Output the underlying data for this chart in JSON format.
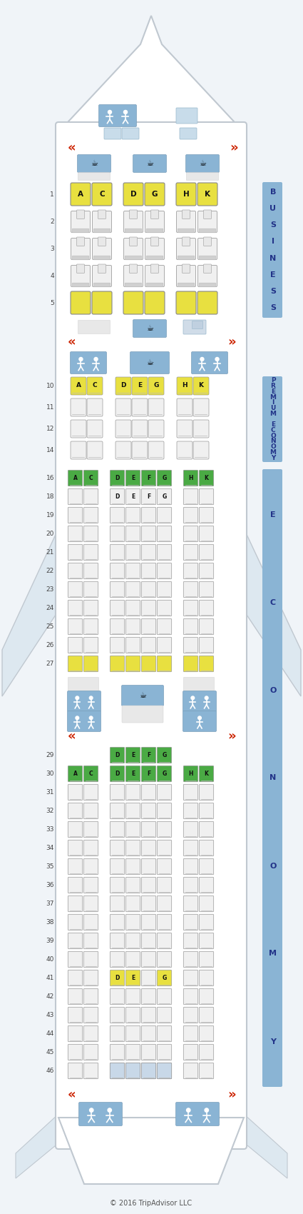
{
  "bg_color": "#f0f4f8",
  "fuselage_color": "#ffffff",
  "fuselage_border": "#c0c8d0",
  "wing_color": "#dde8f0",
  "seat_yellow": "#e8e040",
  "seat_green": "#4aaa44",
  "seat_white": "#f0f0f0",
  "seat_border": "#aaaaaa",
  "blue_block": "#8ab4d4",
  "door_arrow_color": "#cc2200",
  "label_text_color": "#223388",
  "copyright": "© 2016 TripAdvisor LLC",
  "business_rows": [
    1,
    2,
    3,
    4,
    5
  ],
  "business_yellow": [
    1,
    5
  ],
  "premium_rows": [
    10,
    11,
    12,
    14
  ],
  "premium_yellow": [
    10
  ],
  "economy1_rows": [
    16,
    18,
    19,
    20,
    21,
    22,
    23,
    24,
    25,
    26,
    27
  ],
  "economy1_yellow": [
    27
  ],
  "economy1_green": [
    16
  ],
  "economy2_rows": [
    30,
    31,
    32,
    33,
    34,
    35,
    36,
    37,
    38,
    39,
    40,
    41,
    42,
    43,
    44,
    45,
    46
  ],
  "economy2_green": [
    30
  ],
  "economy2_yellow": [],
  "economy2_mid_yellow_rows": [
    41
  ],
  "row29_mid_green": true,
  "row18_mid_labels": true
}
